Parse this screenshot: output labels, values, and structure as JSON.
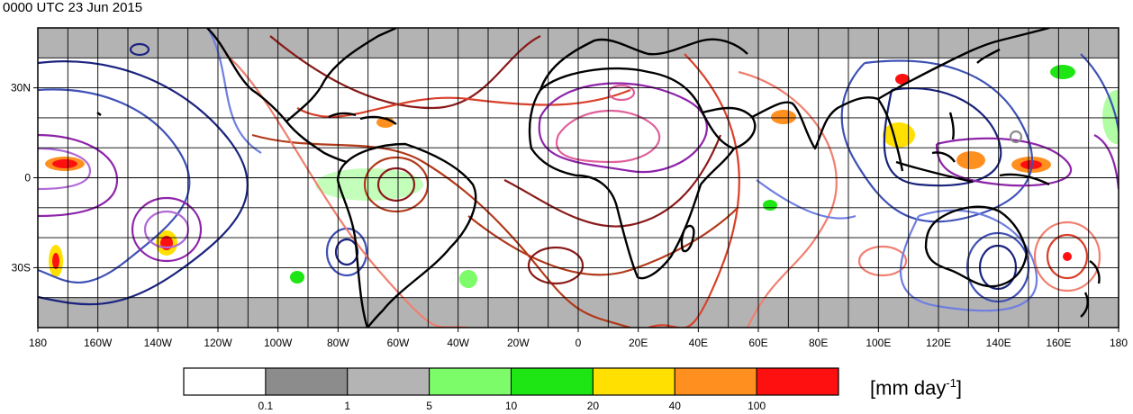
{
  "title": "0000 UTC 23 Jun 2015",
  "map": {
    "lon_labels": [
      "180",
      "160W",
      "140W",
      "120W",
      "100W",
      "80W",
      "60W",
      "40W",
      "20W",
      "0",
      "20E",
      "40E",
      "60E",
      "80E",
      "100E",
      "120E",
      "140E",
      "160E",
      "180"
    ],
    "lat_labels": [
      "30N",
      "0",
      "30S"
    ],
    "lon_range": [
      -180,
      180
    ],
    "lat_range": [
      -50,
      50
    ],
    "shaded_bands": [
      "40N-50N",
      "40S-50S"
    ],
    "colors": {
      "shade_band": "#b3b3b3",
      "coastline": "#000000",
      "grid": "#000000"
    },
    "contour_colors": [
      "#1a237e",
      "#3f51b5",
      "#6f7fe0",
      "#8e24aa",
      "#b06ad6",
      "#8b1a1a",
      "#b23a1a",
      "#d9402a",
      "#f08070",
      "#e0609a"
    ]
  },
  "colorbar": {
    "bins": [
      {
        "color": "#ffffff"
      },
      {
        "color": "#8c8c8c"
      },
      {
        "color": "#b4b4b4"
      },
      {
        "color": "#7cfc68"
      },
      {
        "color": "#1ee614"
      },
      {
        "color": "#ffe000"
      },
      {
        "color": "#ff9020"
      },
      {
        "color": "#ff1010"
      }
    ],
    "tick_labels": [
      "0.1",
      "1",
      "5",
      "10",
      "20",
      "40",
      "100"
    ],
    "units_main": "[mm day",
    "units_sup": "-1",
    "units_close": "]"
  }
}
